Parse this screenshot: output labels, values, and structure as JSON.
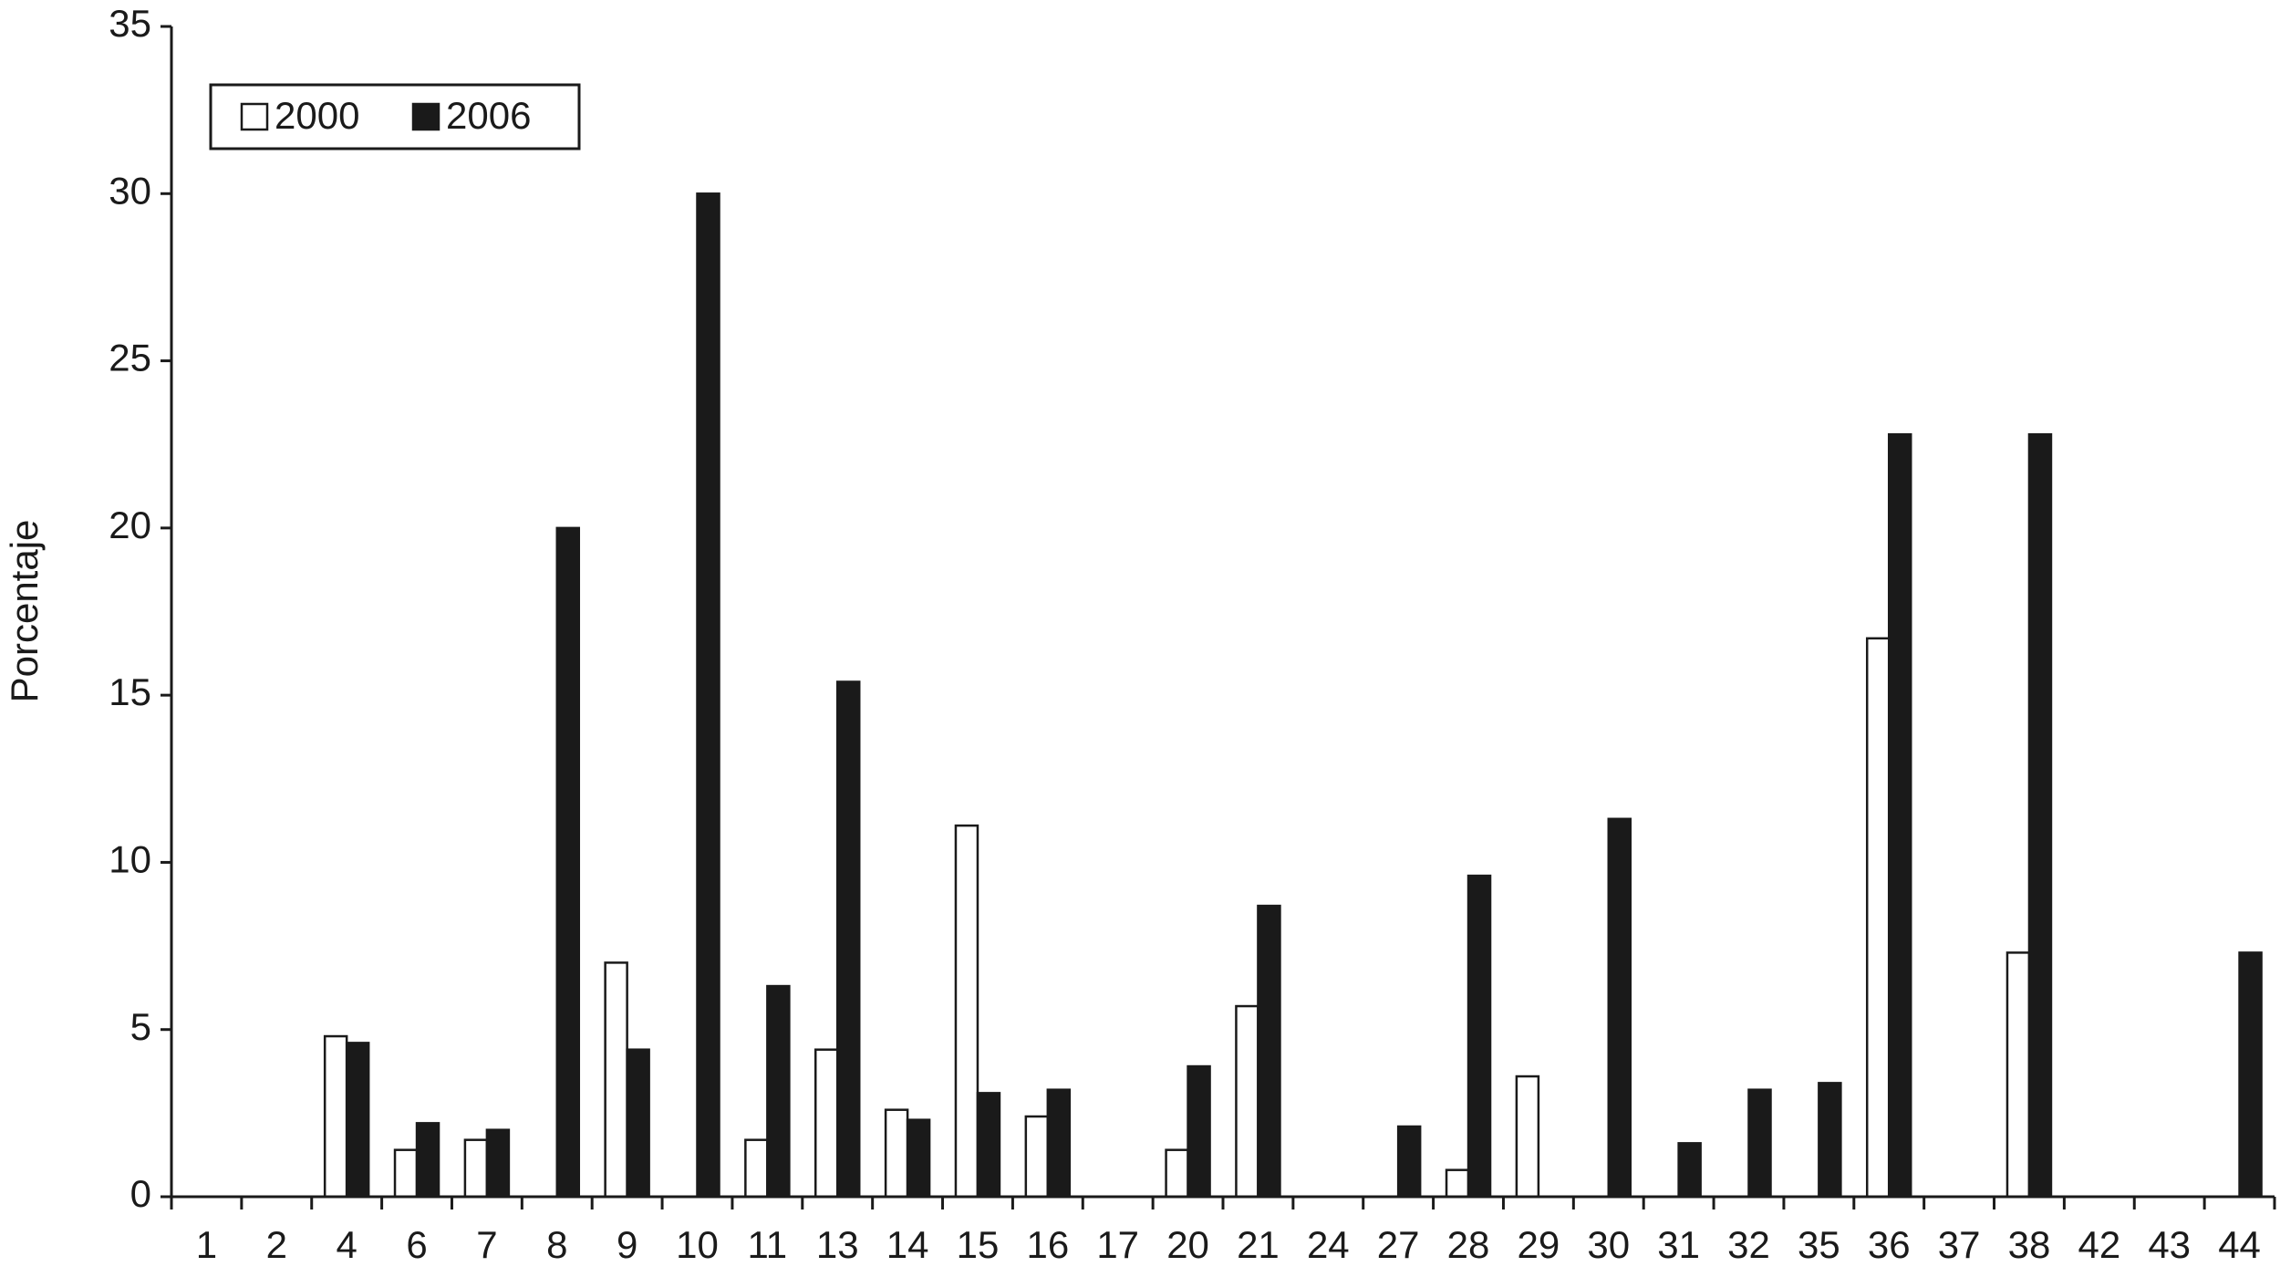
{
  "chart_data": {
    "type": "bar",
    "ylabel": "Porcentaje",
    "categories": [
      "1",
      "2",
      "4",
      "6",
      "7",
      "8",
      "9",
      "10",
      "11",
      "13",
      "14",
      "15",
      "16",
      "17",
      "20",
      "21",
      "24",
      "27",
      "28",
      "29",
      "30",
      "31",
      "32",
      "35",
      "36",
      "37",
      "38",
      "42",
      "43",
      "44"
    ],
    "series": [
      {
        "name": "2000",
        "color": "#ffffff",
        "values": [
          0,
          0,
          4.8,
          1.4,
          1.7,
          0,
          7.0,
          0,
          1.7,
          4.4,
          2.6,
          11.1,
          2.4,
          0,
          1.4,
          5.7,
          0,
          0,
          0.8,
          3.6,
          0,
          0,
          0,
          0,
          16.7,
          0,
          7.3,
          0,
          0,
          0
        ]
      },
      {
        "name": "2006",
        "color": "#1a1a1a",
        "values": [
          0,
          0,
          4.6,
          2.2,
          2.0,
          20.0,
          4.4,
          30.0,
          6.3,
          15.4,
          2.3,
          3.1,
          3.2,
          0,
          3.9,
          8.7,
          0,
          2.1,
          9.6,
          0,
          11.3,
          1.6,
          3.2,
          3.4,
          22.8,
          0,
          22.8,
          0,
          0,
          7.3
        ]
      }
    ],
    "ylim": [
      0,
      35
    ],
    "yticks": [
      0,
      5,
      10,
      15,
      20,
      25,
      30,
      35
    ],
    "grid": false,
    "legend": "upper left"
  }
}
